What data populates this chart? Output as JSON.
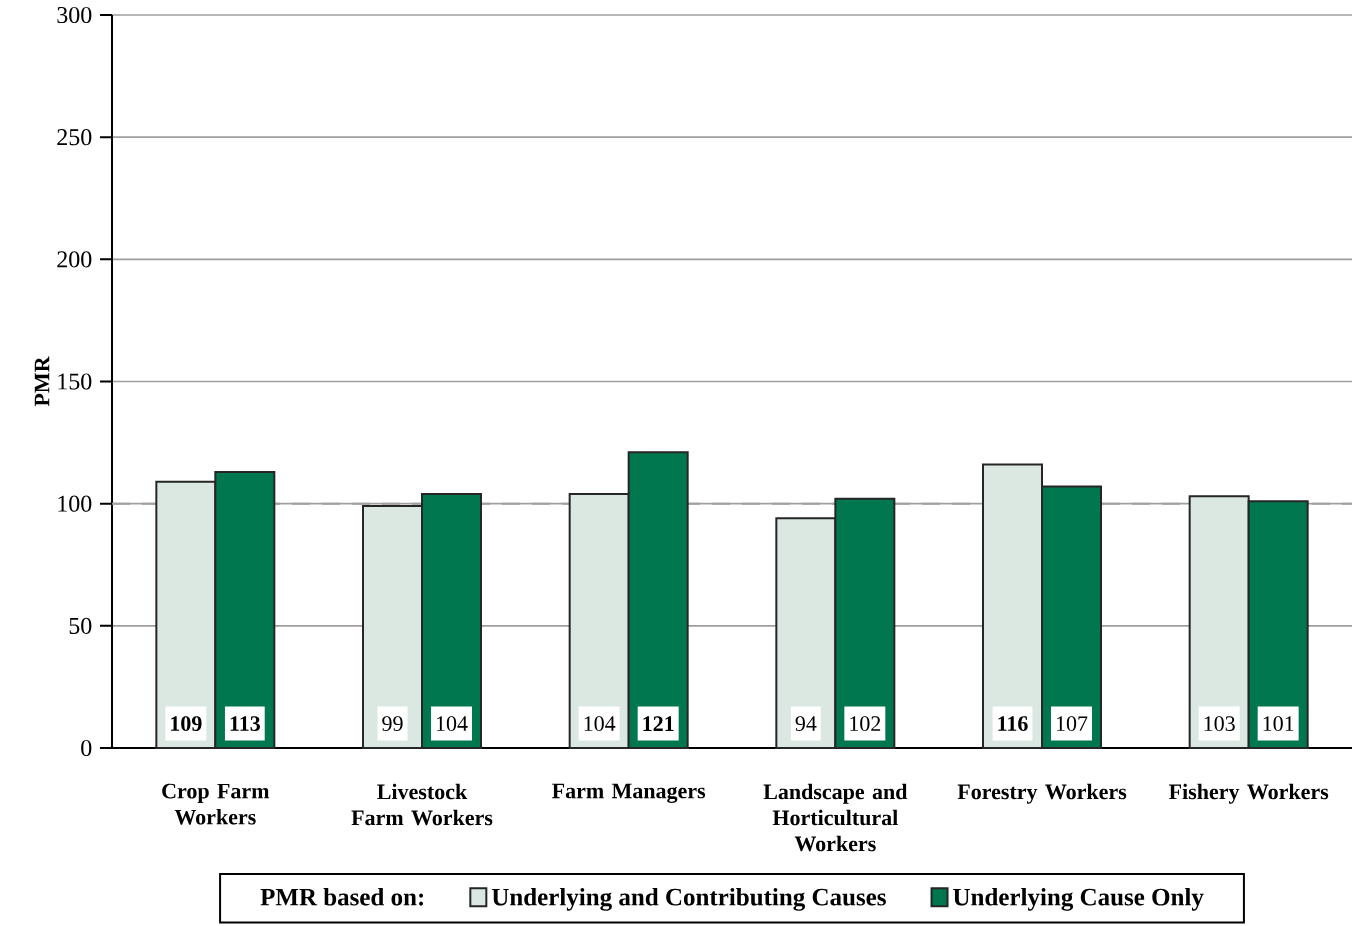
{
  "chart_data": {
    "type": "bar",
    "ylabel": "PMR",
    "legend_title": "PMR based on:",
    "categories": [
      "Crop Farm Workers",
      "Livestock Farm Workers",
      "Farm Managers",
      "Landscape and Horticultural Workers",
      "Forestry Workers",
      "Fishery Workers"
    ],
    "series": [
      {
        "name": "Underlying and Contributing Causes",
        "color": "#dbe8e2",
        "values": [
          109,
          99,
          104,
          94,
          116,
          103
        ],
        "value_labels": [
          "**109**",
          "99",
          "104",
          "94",
          "**116**",
          "103"
        ]
      },
      {
        "name": "Underlying Cause Only",
        "color": "#00774f",
        "values": [
          113,
          104,
          121,
          102,
          107,
          101
        ],
        "value_labels": [
          "**113**",
          "104",
          "**121**",
          "102",
          "107",
          "101"
        ]
      }
    ],
    "ylim": [
      0,
      300
    ],
    "yticks": [
      0,
      50,
      100,
      150,
      200,
      250,
      300
    ],
    "grid": "y",
    "legend": "bottom",
    "ref_lines": [
      {
        "axis": "y",
        "value": 100,
        "color": "#a0a0a0",
        "line_style": "dashed"
      }
    ]
  }
}
